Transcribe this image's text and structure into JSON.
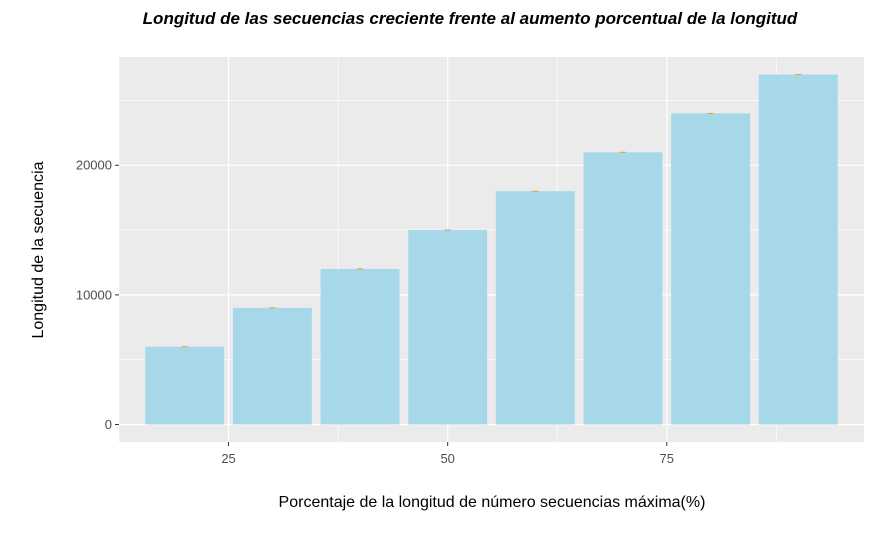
{
  "chart_data": {
    "type": "bar",
    "title": "Longitud de las secuencias creciente frente al aumento porcentual de la longitud",
    "xlabel": "Porcentaje de la longitud de número secuencias máxima(%)",
    "ylabel": "Longitud de la secuencia",
    "x": [
      20,
      30,
      40,
      50,
      60,
      70,
      80,
      90
    ],
    "values": [
      6000,
      9000,
      12000,
      15000,
      18000,
      21000,
      24000,
      27000
    ],
    "bar_width": 9,
    "xlim": [
      12.5,
      97.5
    ],
    "ylim": [
      -1350,
      28350
    ],
    "xticks": [
      25,
      50,
      75
    ],
    "yticks": [
      0,
      10000,
      20000
    ],
    "xtick_labels": [
      "25",
      "50",
      "75"
    ],
    "ytick_labels": [
      "0",
      "10000",
      "20000"
    ],
    "grid": true,
    "colors": {
      "panel_background": "#ebebeb",
      "grid": "#ffffff",
      "bar_fill": "#a6d8ea",
      "error_bar": "#e6a02e"
    }
  }
}
